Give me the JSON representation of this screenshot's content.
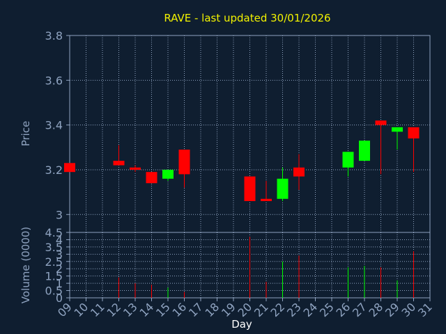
{
  "colors": {
    "background": "#0f1e30",
    "axis": "#8fa3c0",
    "grid": "#8fa3c0",
    "title": "#f2f200",
    "up": "#00ff00",
    "down": "#ff0000"
  },
  "chart_data": [
    {
      "type": "candlestick",
      "title": "RAVE - last updated 30/01/2026",
      "ylabel": "Price",
      "xlabel": "Day",
      "ylim": [
        2.92,
        3.8
      ],
      "yticks": [
        3,
        3.2,
        3.4,
        3.6,
        3.8
      ],
      "ytick_labels": [
        "3",
        "3.2",
        "3.4",
        "3.6",
        "3.8"
      ],
      "grid": true,
      "x_categories": [
        "09",
        "10",
        "11",
        "12",
        "13",
        "14",
        "15",
        "16",
        "17",
        "18",
        "19",
        "20",
        "21",
        "22",
        "23",
        "24",
        "25",
        "26",
        "27",
        "28",
        "29",
        "30",
        "31"
      ],
      "candles": [
        {
          "day": "09",
          "open": 3.23,
          "high": 3.23,
          "low": 3.19,
          "close": 3.19
        },
        {
          "day": "12",
          "open": 3.24,
          "high": 3.31,
          "low": 3.22,
          "close": 3.22
        },
        {
          "day": "13",
          "open": 3.21,
          "high": 3.22,
          "low": 3.19,
          "close": 3.2
        },
        {
          "day": "14",
          "open": 3.19,
          "high": 3.19,
          "low": 3.14,
          "close": 3.14
        },
        {
          "day": "15",
          "open": 3.16,
          "high": 3.2,
          "low": 3.15,
          "close": 3.2
        },
        {
          "day": "16",
          "open": 3.29,
          "high": 3.29,
          "low": 3.12,
          "close": 3.18
        },
        {
          "day": "20",
          "open": 3.17,
          "high": 3.17,
          "low": 3.06,
          "close": 3.06
        },
        {
          "day": "21",
          "open": 3.07,
          "high": 3.15,
          "low": 3.06,
          "close": 3.06
        },
        {
          "day": "22",
          "open": 3.07,
          "high": 3.21,
          "low": 3.06,
          "close": 3.16
        },
        {
          "day": "23",
          "open": 3.21,
          "high": 3.27,
          "low": 3.11,
          "close": 3.17
        },
        {
          "day": "26",
          "open": 3.21,
          "high": 3.28,
          "low": 3.17,
          "close": 3.28
        },
        {
          "day": "27",
          "open": 3.24,
          "high": 3.33,
          "low": 3.24,
          "close": 3.33
        },
        {
          "day": "28",
          "open": 3.42,
          "high": 3.42,
          "low": 3.18,
          "close": 3.4
        },
        {
          "day": "29",
          "open": 3.37,
          "high": 3.39,
          "low": 3.29,
          "close": 3.39
        },
        {
          "day": "30",
          "open": 3.39,
          "high": 3.39,
          "low": 3.19,
          "close": 3.34
        }
      ]
    },
    {
      "type": "bar",
      "ylabel": "Volume (0000)",
      "xlabel": "Day",
      "ylim": [
        0,
        4.5
      ],
      "yticks": [
        0,
        0.5,
        1,
        1.5,
        2,
        2.5,
        3,
        3.5,
        4,
        4.5
      ],
      "ytick_labels": [
        "0",
        "0.5",
        "1",
        "1.5",
        "2",
        "2.5",
        "3",
        "3.5",
        "4",
        "4.5"
      ],
      "categories": [
        "09",
        "10",
        "11",
        "12",
        "13",
        "14",
        "15",
        "16",
        "17",
        "18",
        "19",
        "20",
        "21",
        "22",
        "23",
        "24",
        "25",
        "26",
        "27",
        "28",
        "29",
        "30",
        "31"
      ],
      "bars": [
        {
          "day": "12",
          "value": 1.4,
          "dir": "down"
        },
        {
          "day": "13",
          "value": 1.0,
          "dir": "down"
        },
        {
          "day": "14",
          "value": 0.9,
          "dir": "down"
        },
        {
          "day": "15",
          "value": 0.7,
          "dir": "up"
        },
        {
          "day": "16",
          "value": 0.4,
          "dir": "down"
        },
        {
          "day": "20",
          "value": 4.2,
          "dir": "down"
        },
        {
          "day": "21",
          "value": 1.1,
          "dir": "down"
        },
        {
          "day": "22",
          "value": 2.5,
          "dir": "up"
        },
        {
          "day": "23",
          "value": 2.9,
          "dir": "down"
        },
        {
          "day": "26",
          "value": 2.1,
          "dir": "up"
        },
        {
          "day": "27",
          "value": 2.2,
          "dir": "up"
        },
        {
          "day": "28",
          "value": 2.1,
          "dir": "down"
        },
        {
          "day": "29",
          "value": 1.2,
          "dir": "up"
        },
        {
          "day": "30",
          "value": 3.2,
          "dir": "down"
        }
      ]
    }
  ]
}
